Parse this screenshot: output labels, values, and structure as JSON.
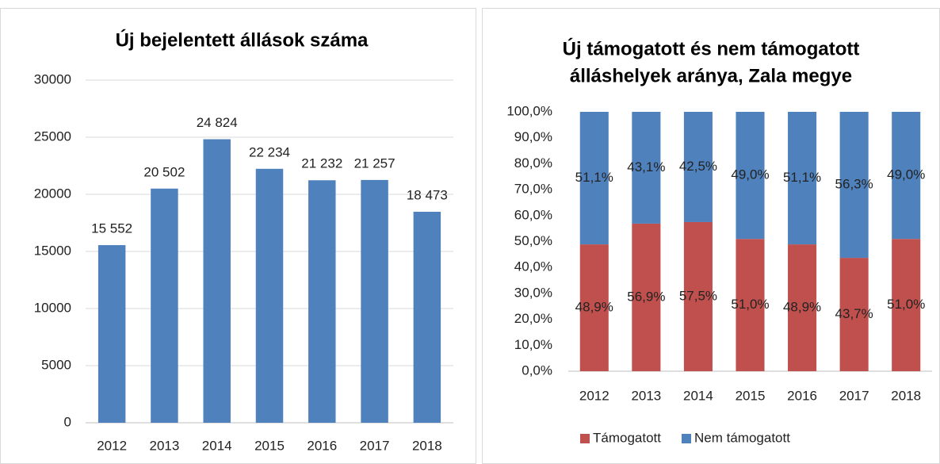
{
  "chart_data": [
    {
      "type": "bar",
      "title": "Új bejelentett állások száma",
      "categories": [
        "2012",
        "2013",
        "2014",
        "2015",
        "2016",
        "2017",
        "2018"
      ],
      "values": [
        15552,
        20502,
        24824,
        22234,
        21232,
        21257,
        18473
      ],
      "value_labels": [
        "15 552",
        "20 502",
        "24 824",
        "22 234",
        "21 232",
        "21 257",
        "18 473"
      ],
      "color": "#4f81bd",
      "ylim": [
        0,
        30000
      ],
      "yticks": [
        0,
        5000,
        10000,
        15000,
        20000,
        25000,
        30000
      ],
      "grid": true
    },
    {
      "type": "stacked_bar",
      "title": [
        "Új támogatott és nem támogatott",
        "álláshelyek aránya, Zala megye"
      ],
      "categories": [
        "2012",
        "2013",
        "2014",
        "2015",
        "2016",
        "2017",
        "2018"
      ],
      "series": [
        {
          "name": "Támogatott",
          "color": "#c0504d",
          "values": [
            48.9,
            56.9,
            57.5,
            51.0,
            48.9,
            43.7,
            51.0
          ],
          "value_labels": [
            "48,9%",
            "56,9%",
            "57,5%",
            "51,0%",
            "48,9%",
            "43,7%",
            "51,0%"
          ]
        },
        {
          "name": "Nem támogatott",
          "color": "#4f81bd",
          "values": [
            51.1,
            43.1,
            42.5,
            49.0,
            51.1,
            56.3,
            49.0
          ],
          "value_labels": [
            "51,1%",
            "43,1%",
            "42,5%",
            "49,0%",
            "51,1%",
            "56,3%",
            "49,0%"
          ]
        }
      ],
      "ylim": [
        0,
        100
      ],
      "yticks": [
        {
          "value": 0,
          "label": "0,0%"
        },
        {
          "value": 10,
          "label": "10,0%"
        },
        {
          "value": 20,
          "label": "20,0%"
        },
        {
          "value": 30,
          "label": "30,0%"
        },
        {
          "value": 40,
          "label": "40,0%"
        },
        {
          "value": 50,
          "label": "50,0%"
        },
        {
          "value": 60,
          "label": "60,0%"
        },
        {
          "value": 70,
          "label": "70,0%"
        },
        {
          "value": 80,
          "label": "80,0%"
        },
        {
          "value": 90,
          "label": "90,0%"
        },
        {
          "value": 100,
          "label": "100,0%"
        }
      ],
      "grid": false,
      "legend": "bottom"
    }
  ]
}
